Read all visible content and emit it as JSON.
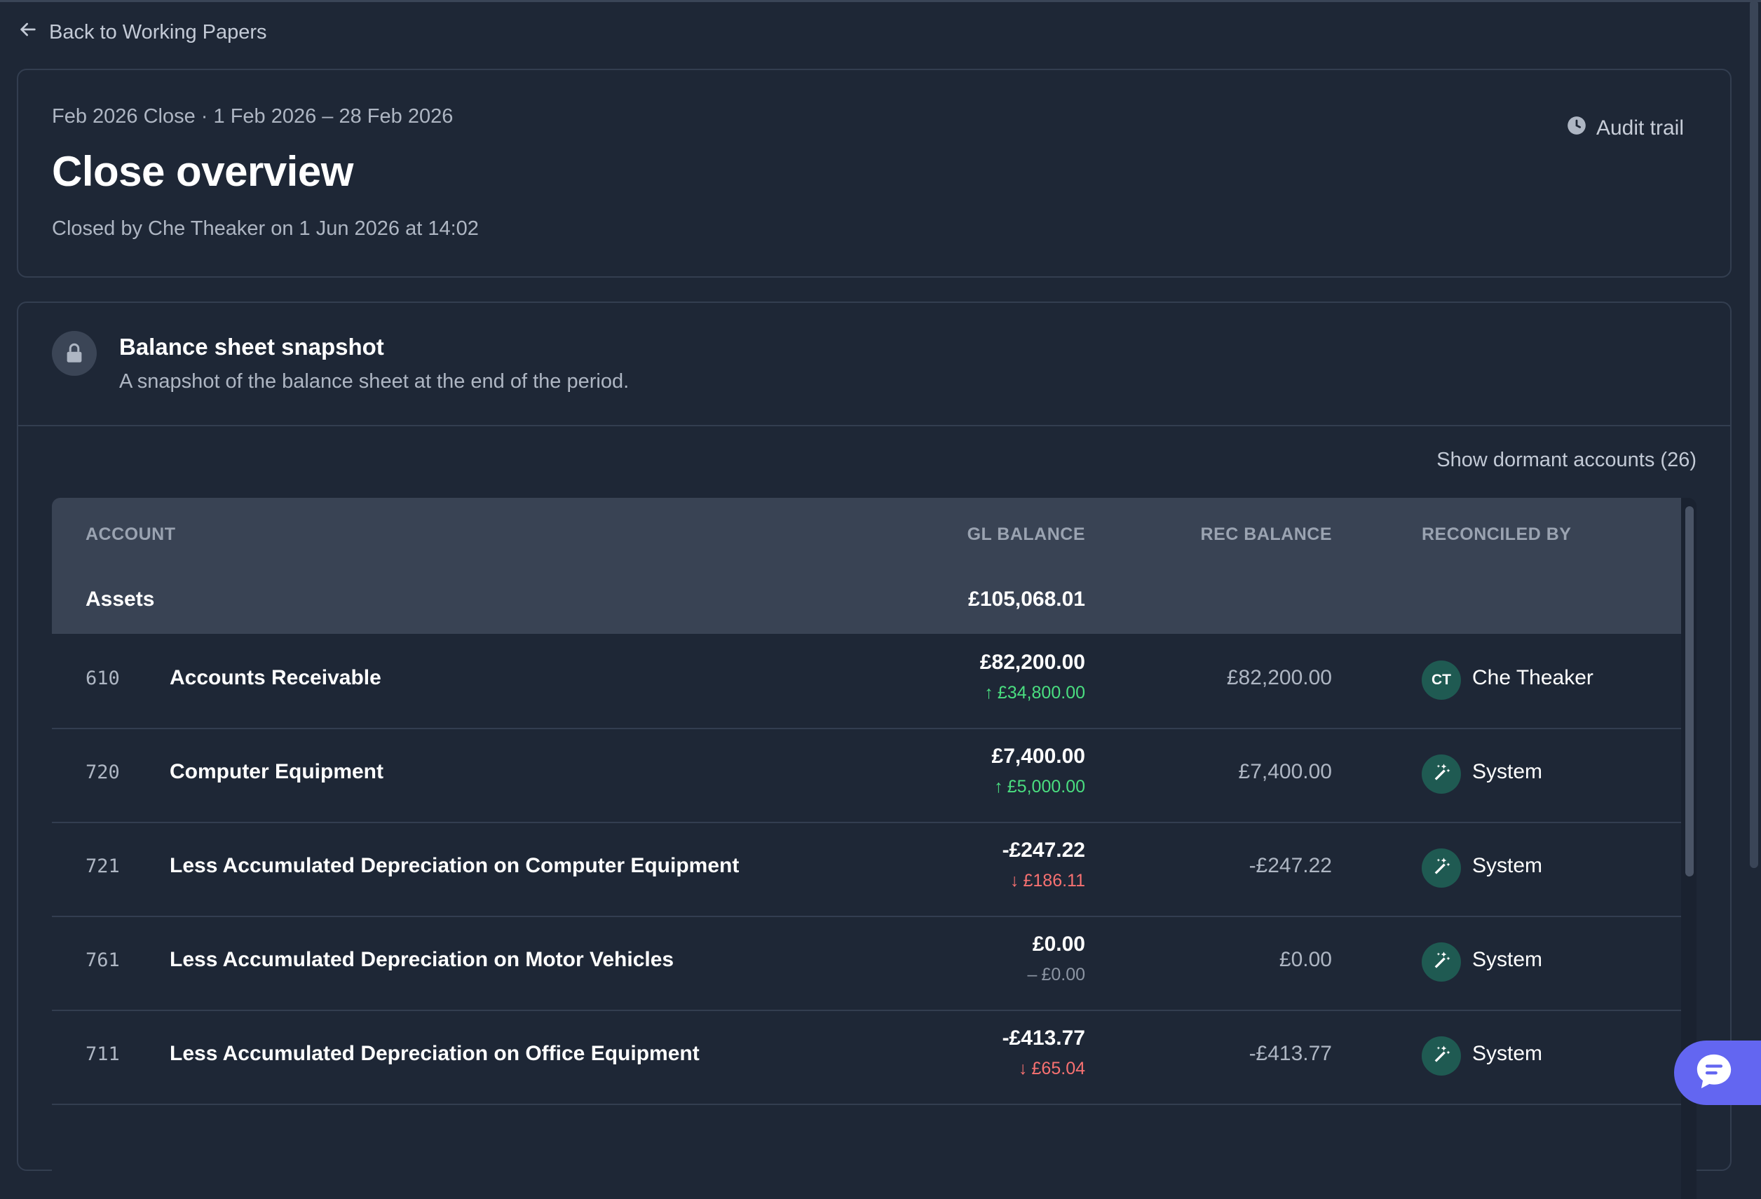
{
  "nav": {
    "back_label": "Back to Working Papers"
  },
  "header": {
    "period": "Feb 2026 Close · 1 Feb 2026 – 28 Feb 2026",
    "title": "Close overview",
    "closed_by": "Closed by Che Theaker on 1 Jun 2026 at 14:02",
    "audit_trail_label": "Audit trail"
  },
  "snapshot": {
    "title": "Balance sheet snapshot",
    "description": "A snapshot of the balance sheet at the end of the period.",
    "dormant_link": "Show dormant accounts (26)"
  },
  "table": {
    "columns": {
      "account": "ACCOUNT",
      "gl_balance": "GL BALANCE",
      "rec_balance": "REC BALANCE",
      "reconciled_by": "RECONCILED BY"
    },
    "group": {
      "name": "Assets",
      "total": "£105,068.01"
    },
    "rows": [
      {
        "code": "610",
        "name": "Accounts Receivable",
        "gl": "£82,200.00",
        "change": "£34,800.00",
        "dir": "up",
        "rec": "£82,200.00",
        "initials": "CT",
        "by": "Che Theaker"
      },
      {
        "code": "720",
        "name": "Computer Equipment",
        "gl": "£7,400.00",
        "change": "£5,000.00",
        "dir": "up",
        "rec": "£7,400.00",
        "initials": "",
        "by": "System"
      },
      {
        "code": "721",
        "name": "Less Accumulated Depreciation on Computer Equipment",
        "gl": "-£247.22",
        "change": "£186.11",
        "dir": "down",
        "rec": "-£247.22",
        "initials": "",
        "by": "System"
      },
      {
        "code": "761",
        "name": "Less Accumulated Depreciation on Motor Vehicles",
        "gl": "£0.00",
        "change": "£0.00",
        "dir": "flat",
        "rec": "£0.00",
        "initials": "",
        "by": "System"
      },
      {
        "code": "711",
        "name": "Less Accumulated Depreciation on Office Equipment",
        "gl": "-£413.77",
        "change": "£65.04",
        "dir": "down",
        "rec": "-£413.77",
        "initials": "",
        "by": "System"
      }
    ]
  },
  "colors": {
    "background": "#1e2736",
    "accent_up": "#4ade80",
    "accent_down": "#f87171",
    "chat_button": "#6366f1",
    "avatar": "#1f5a52"
  },
  "icons": {
    "back": "arrow-left-icon",
    "audit": "clock-icon",
    "lock": "lock-icon",
    "system": "magic-wand-icon",
    "chat": "chat-bubble-icon"
  }
}
